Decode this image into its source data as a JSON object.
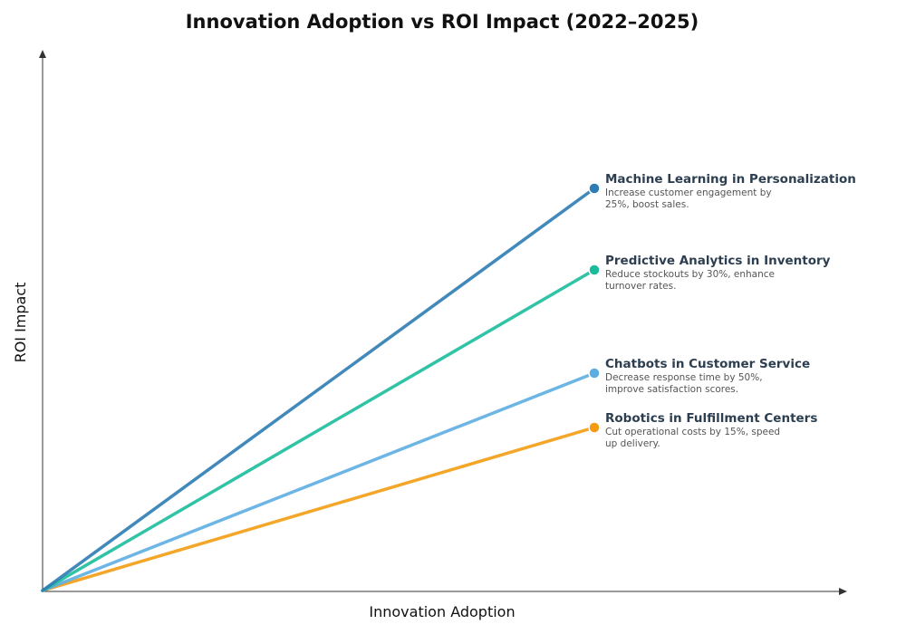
{
  "chart_data": {
    "type": "line",
    "title": "Innovation Adoption vs ROI Impact (2022–2025)",
    "xlabel": "Innovation Adoption",
    "ylabel": "ROI Impact",
    "series": [
      {
        "name": "Machine Learning in Personalization",
        "description": [
          "Increase customer engagement by",
          "25%, boost sales."
        ],
        "color": "#2e7cb4",
        "start": [
          0,
          0
        ],
        "end": [
          1,
          0.74
        ]
      },
      {
        "name": "Predictive Analytics in Inventory",
        "description": [
          "Reduce stockouts by 30%, enhance",
          "turnover rates."
        ],
        "color": "#1abc9c",
        "start": [
          0,
          0
        ],
        "end": [
          1,
          0.59
        ]
      },
      {
        "name": "Chatbots in Customer Service",
        "description": [
          "Decrease response time by 50%,",
          "improve satisfaction scores."
        ],
        "color": "#5dade2",
        "start": [
          0,
          0
        ],
        "end": [
          1,
          0.4
        ]
      },
      {
        "name": "Robotics in Fulfillment Centers",
        "description": [
          "Cut operational costs by 15%, speed",
          "up delivery."
        ],
        "color": "#f39c12",
        "start": [
          0,
          0
        ],
        "end": [
          1,
          0.3
        ]
      }
    ],
    "grid": false,
    "legend": "inline-right"
  }
}
